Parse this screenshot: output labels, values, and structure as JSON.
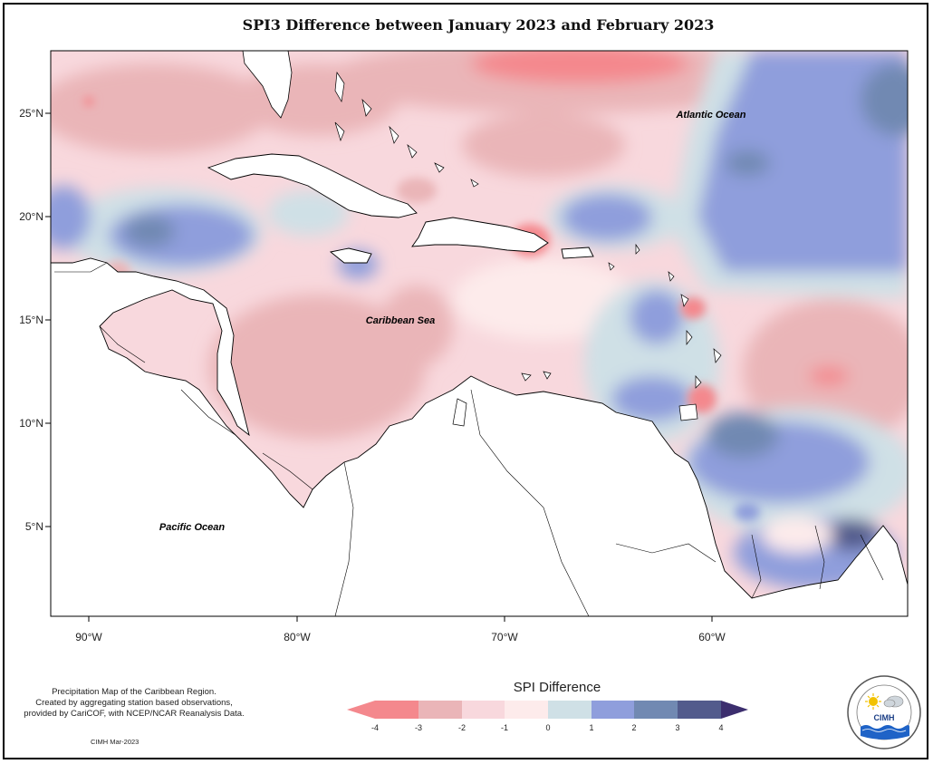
{
  "title": "SPI3 Difference between January 2023 and February 2023",
  "map": {
    "lat_ticks": [
      "25°N",
      "20°N",
      "15°N",
      "10°N",
      "5°N"
    ],
    "lon_ticks": [
      "90°W",
      "80°W",
      "70°W",
      "60°W"
    ],
    "labels": {
      "atlantic": "Atlantic Ocean",
      "caribbean": "Caribbean Sea",
      "pacific": "Pacific Ocean"
    }
  },
  "legend": {
    "title": "SPI Difference",
    "ticks": [
      "-4",
      "-3",
      "-2",
      "-1",
      "0",
      "1",
      "2",
      "3",
      "4"
    ],
    "colors": [
      "#f4888d",
      "#eab5b8",
      "#f8d8dd",
      "#fdebeb",
      "#cfe0e6",
      "#8f9edc",
      "#7189b2",
      "#525b8c",
      "#3c2e6e"
    ]
  },
  "footnote": {
    "line1": "Precipitation Map of the Caribbean Region.",
    "line2": "Created by aggregating station based observations,",
    "line3": "provided by CariCOF, with NCEP/NCAR Reanalysis Data.",
    "credit": "CIMH Mar-2023"
  },
  "logo": {
    "name": "CIMH"
  }
}
